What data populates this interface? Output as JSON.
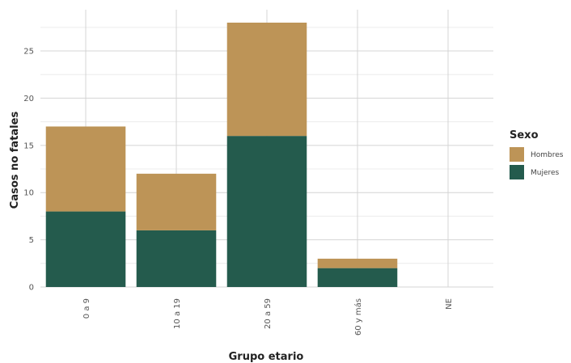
{
  "chart_data": {
    "type": "bar",
    "stacked": true,
    "categories": [
      "0 a 9",
      "10 a 19",
      "20 a 59",
      "60 y más",
      "NE"
    ],
    "series": [
      {
        "name": "Mujeres",
        "values": [
          8,
          6,
          16,
          2,
          0
        ],
        "color": "#245b4d"
      },
      {
        "name": "Hombres",
        "values": [
          9,
          6,
          12,
          1,
          0
        ],
        "color": "#bd9457"
      }
    ],
    "xlabel": "Grupo etario",
    "ylabel": "Casos no fatales",
    "ylim": [
      0,
      28
    ],
    "yticks": [
      0,
      5,
      10,
      15,
      20,
      25
    ],
    "grid": true,
    "legend": {
      "title": "Sexo",
      "placement": "right",
      "entries": [
        "Hombres",
        "Mujeres"
      ]
    }
  }
}
